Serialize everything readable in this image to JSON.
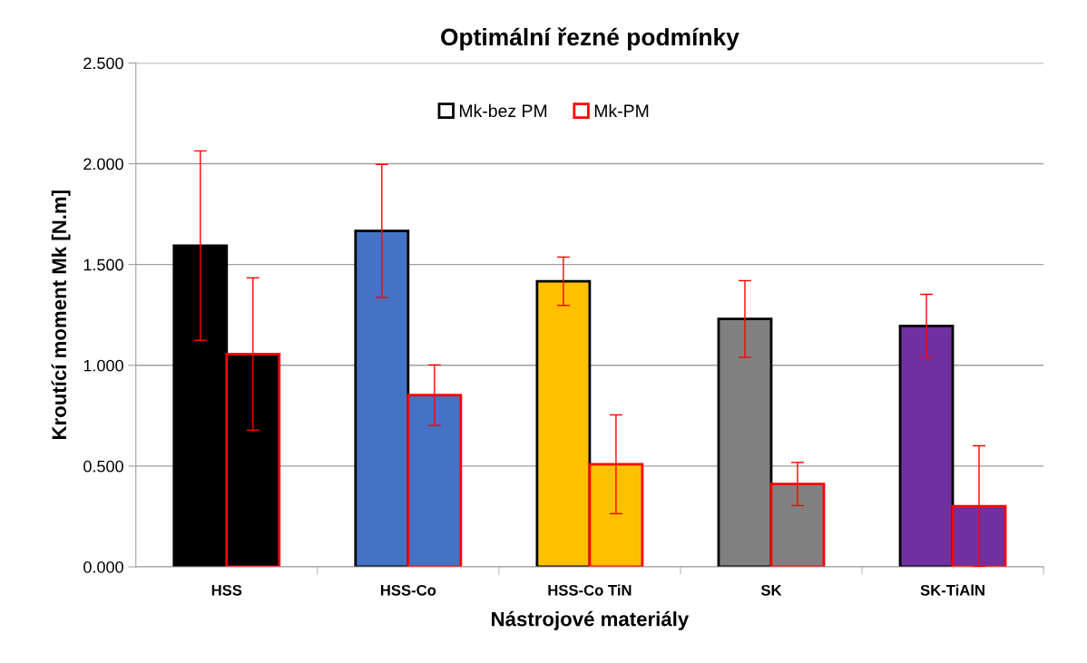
{
  "chart_data": {
    "type": "bar",
    "title": "Optimální řezné podmínky",
    "xlabel": "Nástrojové materiály",
    "ylabel": "Kroutící moment Mk [N.m]",
    "categories": [
      "HSS",
      "HSS-Co",
      "HSS-Co TiN",
      "SK",
      "SK-TiAlN"
    ],
    "series": [
      {
        "name": "Mk-bez PM",
        "color": "#000000",
        "colors": [
          "#000000",
          "#4472c4",
          "#ffc000",
          "#808080",
          "#7030a0"
        ],
        "values": [
          1.594,
          1.667,
          1.417,
          1.23,
          1.195
        ],
        "errors": [
          0.47,
          0.33,
          0.12,
          0.19,
          0.157
        ]
      },
      {
        "name": "Mk-PM",
        "color": "#ff0000",
        "colors": [
          "#000000",
          "#4472c4",
          "#ffc000",
          "#808080",
          "#7030a0"
        ],
        "values": [
          1.056,
          0.852,
          0.509,
          0.411,
          0.301
        ],
        "errors": [
          0.378,
          0.15,
          0.245,
          0.107,
          0.3
        ]
      }
    ],
    "ylim": [
      0,
      2.5
    ],
    "yticks": [
      {
        "value": 0,
        "label": "0.000"
      },
      {
        "value": 0.5,
        "label": "0.500"
      },
      {
        "value": 1,
        "label": "1.000"
      },
      {
        "value": 1.5,
        "label": "1.500"
      },
      {
        "value": 2,
        "label": "2.000"
      },
      {
        "value": 2.5,
        "label": "2.500"
      }
    ],
    "grid": "y",
    "legend": "top"
  }
}
